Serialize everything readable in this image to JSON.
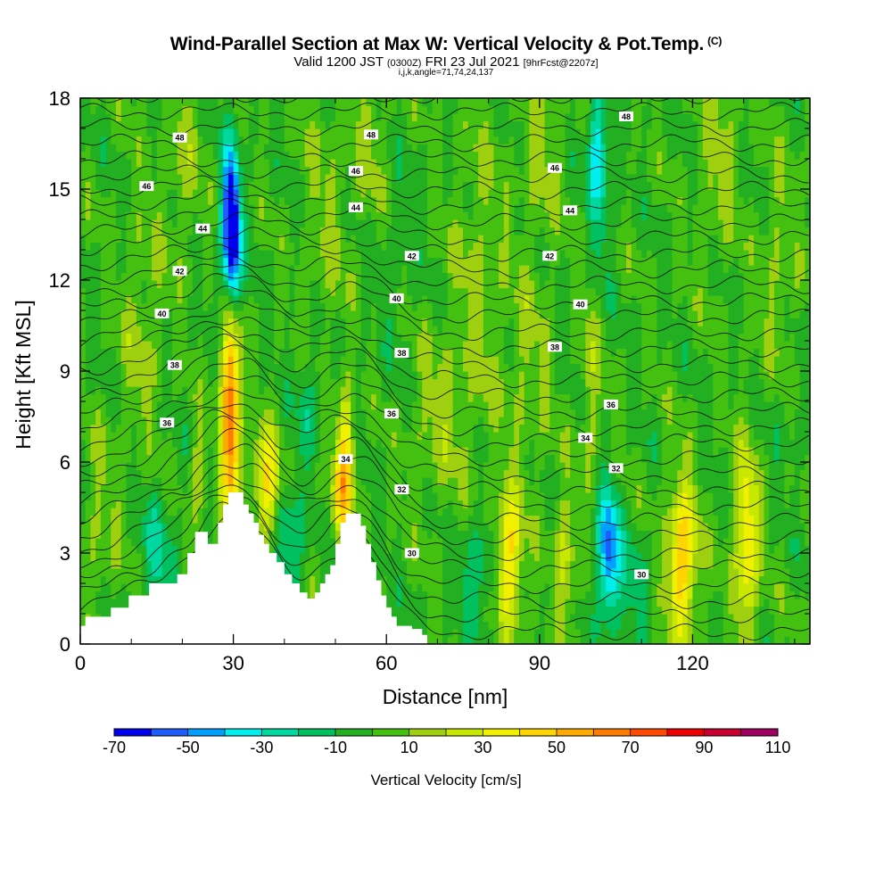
{
  "header": {
    "title": "Wind-Parallel Section at Max W: Vertical Velocity & Pot.Temp.",
    "title_mark": "(C)",
    "subtitle_a": "Valid 1200 JST",
    "subtitle_b": "(0300Z)",
    "subtitle_c": "FRI 23 Jul 2021",
    "subtitle_d": "[9hrFcst@2207z]",
    "subline": "i,j,k,angle=71,74,24,137"
  },
  "chart_data": {
    "type": "heatmap",
    "xlabel": "Distance [nm]",
    "ylabel": "Height [Kft MSL]",
    "xlim": [
      0,
      143
    ],
    "ylim": [
      0,
      18
    ],
    "xticks": [
      0,
      30,
      60,
      90,
      120
    ],
    "yticks": [
      0,
      3,
      6,
      9,
      12,
      15,
      18
    ],
    "colorbar": {
      "title": "Vertical Velocity [cm/s]",
      "ticks": [
        -70,
        -50,
        -30,
        -10,
        10,
        30,
        50,
        70,
        90,
        110
      ],
      "levels": [
        -70,
        -60,
        -50,
        -40,
        -30,
        -20,
        -10,
        0,
        10,
        20,
        30,
        40,
        50,
        60,
        70,
        80,
        90,
        100,
        110
      ],
      "colors": [
        "#0000ee",
        "#1f5cff",
        "#00a0ff",
        "#00eeee",
        "#00d8a0",
        "#00c060",
        "#22b022",
        "#44c011",
        "#9ed010",
        "#c8e800",
        "#f0f000",
        "#ffd400",
        "#ffaa00",
        "#ff7a00",
        "#ff4a00",
        "#ee0000",
        "#c80030",
        "#a00060",
        "#6a0090"
      ]
    },
    "background_velocity": 0,
    "updrafts_downdrafts": [
      {
        "x": 29.5,
        "y": 6.8,
        "w": 65,
        "sx": 1.3,
        "sy": 2.2
      },
      {
        "x": 29.5,
        "y": 9.5,
        "w": 25,
        "sx": 1.5,
        "sy": 1.3
      },
      {
        "x": 29.5,
        "y": 14.2,
        "w": -70,
        "sx": 1.2,
        "sy": 1.6
      },
      {
        "x": 30,
        "y": 12.5,
        "w": -30,
        "sx": 1.2,
        "sy": 1.5
      },
      {
        "x": 36.5,
        "y": 5.2,
        "w": 42,
        "sx": 1.8,
        "sy": 1.3
      },
      {
        "x": 23,
        "y": 5.5,
        "w": 20,
        "sx": 1.1,
        "sy": 1.2
      },
      {
        "x": 52,
        "y": 6.2,
        "w": 40,
        "sx": 1.2,
        "sy": 1.5
      },
      {
        "x": 51,
        "y": 4.8,
        "w": 25,
        "sx": 1.5,
        "sy": 1.0
      },
      {
        "x": 84,
        "y": 2.8,
        "w": 45,
        "sx": 1.8,
        "sy": 1.6
      },
      {
        "x": 95,
        "y": 2.7,
        "w": 25,
        "sx": 1.5,
        "sy": 1.5
      },
      {
        "x": 103.5,
        "y": 3.0,
        "w": -55,
        "sx": 1.5,
        "sy": 1.5
      },
      {
        "x": 118,
        "y": 2.8,
        "w": 50,
        "sx": 2.0,
        "sy": 1.8
      },
      {
        "x": 130.5,
        "y": 3.3,
        "w": 42,
        "sx": 1.6,
        "sy": 2.2
      },
      {
        "x": 101,
        "y": 16.5,
        "w": -25,
        "sx": 1.3,
        "sy": 1.3
      },
      {
        "x": 102,
        "y": 15.0,
        "w": -20,
        "sx": 1.5,
        "sy": 2.0
      },
      {
        "x": 100,
        "y": 8.5,
        "w": 15,
        "sx": 1.5,
        "sy": 2.5
      },
      {
        "x": 15,
        "y": 3.0,
        "w": -20,
        "sx": 2.5,
        "sy": 1.5
      },
      {
        "x": 41,
        "y": 3.5,
        "w": -25,
        "sx": 2.0,
        "sy": 1.3
      },
      {
        "x": 78,
        "y": 2.3,
        "w": -20,
        "sx": 2.5,
        "sy": 1.2
      },
      {
        "x": 108,
        "y": 2.0,
        "w": -15,
        "sx": 2.0,
        "sy": 1.2
      },
      {
        "x": 45,
        "y": 8.0,
        "w": -15,
        "sx": 2.0,
        "sy": 1.3
      },
      {
        "x": 12,
        "y": 10.5,
        "w": 12,
        "sx": 3.0,
        "sy": 3.0
      },
      {
        "x": 20,
        "y": 16.0,
        "w": 12,
        "sx": 2.5,
        "sy": 2.5
      },
      {
        "x": 48,
        "y": 14.0,
        "w": 11,
        "sx": 3.0,
        "sy": 3.0
      },
      {
        "x": 57,
        "y": 16.5,
        "w": 11,
        "sx": 2.5,
        "sy": 2.0
      },
      {
        "x": 78,
        "y": 12.0,
        "w": 12,
        "sx": 3.5,
        "sy": 4.0
      },
      {
        "x": 90,
        "y": 16.0,
        "w": 11,
        "sx": 3.0,
        "sy": 2.0
      },
      {
        "x": 70,
        "y": 7.5,
        "w": 13,
        "sx": 4.0,
        "sy": 2.0
      },
      {
        "x": 88,
        "y": 9.0,
        "w": 12,
        "sx": 3.0,
        "sy": 2.5
      },
      {
        "x": 125,
        "y": 16.0,
        "w": 12,
        "sx": 3.0,
        "sy": 2.5
      },
      {
        "x": 137,
        "y": 12.0,
        "w": 11,
        "sx": 2.5,
        "sy": 3.0
      },
      {
        "x": 62,
        "y": 12.5,
        "w": -6,
        "sx": 3.0,
        "sy": 3.0
      },
      {
        "x": 138,
        "y": 7.5,
        "w": -8,
        "sx": 2.5,
        "sy": 1.5
      },
      {
        "x": 4,
        "y": 4.0,
        "w": 12,
        "sx": 2.5,
        "sy": 2.0
      }
    ],
    "terrain": [
      {
        "x": 0,
        "h": 0.6
      },
      {
        "x": 1,
        "h": 0.9
      },
      {
        "x": 6,
        "h": 1.2
      },
      {
        "x": 9.5,
        "h": 1.6
      },
      {
        "x": 13.5,
        "h": 2.0
      },
      {
        "x": 17.5,
        "h": 2.0
      },
      {
        "x": 19,
        "h": 2.3
      },
      {
        "x": 21,
        "h": 3.0
      },
      {
        "x": 22.5,
        "h": 3.7
      },
      {
        "x": 24,
        "h": 3.7
      },
      {
        "x": 25,
        "h": 3.3
      },
      {
        "x": 26,
        "h": 3.3
      },
      {
        "x": 27,
        "h": 4.0
      },
      {
        "x": 28,
        "h": 4.6
      },
      {
        "x": 29,
        "h": 5.0
      },
      {
        "x": 31,
        "h": 5.0
      },
      {
        "x": 32,
        "h": 4.6
      },
      {
        "x": 33,
        "h": 4.3
      },
      {
        "x": 34,
        "h": 4.0
      },
      {
        "x": 35,
        "h": 3.6
      },
      {
        "x": 36,
        "h": 3.3
      },
      {
        "x": 37,
        "h": 3.0
      },
      {
        "x": 38.5,
        "h": 2.7
      },
      {
        "x": 40,
        "h": 2.3
      },
      {
        "x": 41.5,
        "h": 2.0
      },
      {
        "x": 43,
        "h": 1.7
      },
      {
        "x": 44.5,
        "h": 1.5
      },
      {
        "x": 46,
        "h": 1.7
      },
      {
        "x": 47,
        "h": 2.0
      },
      {
        "x": 48,
        "h": 2.3
      },
      {
        "x": 49,
        "h": 2.6
      },
      {
        "x": 50,
        "h": 3.3
      },
      {
        "x": 51,
        "h": 4.0
      },
      {
        "x": 52,
        "h": 4.3
      },
      {
        "x": 54,
        "h": 4.3
      },
      {
        "x": 55,
        "h": 3.9
      },
      {
        "x": 56,
        "h": 3.3
      },
      {
        "x": 57,
        "h": 2.7
      },
      {
        "x": 58,
        "h": 2.1
      },
      {
        "x": 59,
        "h": 1.6
      },
      {
        "x": 60,
        "h": 1.2
      },
      {
        "x": 61,
        "h": 0.9
      },
      {
        "x": 62,
        "h": 0.6
      },
      {
        "x": 65,
        "h": 0.5
      },
      {
        "x": 67,
        "h": 0.3
      },
      {
        "x": 68,
        "h": 0.0
      },
      {
        "x": 143,
        "h": 0.0
      }
    ],
    "theta_labels": [
      {
        "label": "48",
        "x": 19.5,
        "y": 16.7
      },
      {
        "label": "48",
        "x": 57,
        "y": 16.8
      },
      {
        "label": "48",
        "x": 107,
        "y": 17.4
      },
      {
        "label": "46",
        "x": 13,
        "y": 15.1
      },
      {
        "label": "46",
        "x": 54,
        "y": 15.6
      },
      {
        "label": "46",
        "x": 93,
        "y": 15.7
      },
      {
        "label": "44",
        "x": 24,
        "y": 13.7
      },
      {
        "label": "44",
        "x": 54,
        "y": 14.4
      },
      {
        "label": "44",
        "x": 96,
        "y": 14.3
      },
      {
        "label": "42",
        "x": 19.5,
        "y": 12.3
      },
      {
        "label": "42",
        "x": 65,
        "y": 12.8
      },
      {
        "label": "42",
        "x": 92,
        "y": 12.8
      },
      {
        "label": "40",
        "x": 16,
        "y": 10.9
      },
      {
        "label": "40",
        "x": 62,
        "y": 11.4
      },
      {
        "label": "40",
        "x": 98,
        "y": 11.2
      },
      {
        "label": "38",
        "x": 18.5,
        "y": 9.2
      },
      {
        "label": "38",
        "x": 63,
        "y": 9.6
      },
      {
        "label": "38",
        "x": 93,
        "y": 9.8
      },
      {
        "label": "36",
        "x": 17,
        "y": 7.3
      },
      {
        "label": "36",
        "x": 61,
        "y": 7.6
      },
      {
        "label": "36",
        "x": 104,
        "y": 7.9
      },
      {
        "label": "34",
        "x": 52,
        "y": 6.1
      },
      {
        "label": "34",
        "x": 99,
        "y": 6.8
      },
      {
        "label": "32",
        "x": 63,
        "y": 5.1
      },
      {
        "label": "32",
        "x": 105,
        "y": 5.8
      },
      {
        "label": "30",
        "x": 65,
        "y": 3.0
      },
      {
        "label": "30",
        "x": 110,
        "y": 2.3
      }
    ]
  },
  "colorbar_tick_labels": [
    "-70",
    "-50",
    "-30",
    "-10",
    "10",
    "30",
    "50",
    "70",
    "90",
    "110"
  ]
}
